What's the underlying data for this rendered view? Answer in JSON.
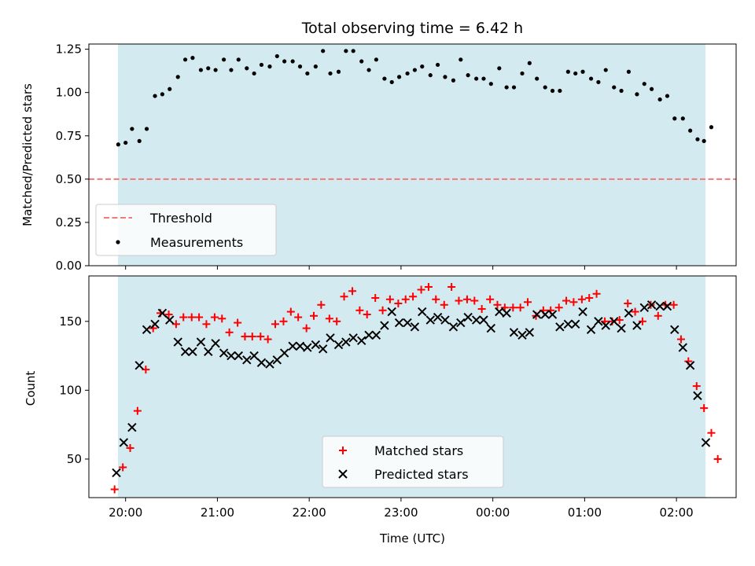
{
  "chart_data": [
    {
      "type": "scatter",
      "title": "Total observing time = 6.42 h",
      "xlabel": "",
      "ylabel": "Matched/Predicted stars",
      "ylim": [
        0,
        1.28
      ],
      "yticks": [
        "0.00",
        "0.25",
        "0.50",
        "0.75",
        "1.00",
        "1.25"
      ],
      "ytick_values": [
        0,
        0.25,
        0.5,
        0.75,
        1.0,
        1.25
      ],
      "xlim": [
        19.6,
        26.65
      ],
      "shaded_span": [
        19.917,
        26.317
      ],
      "shade_color": "#d4eaf1",
      "grid": false,
      "legend_position": "lower-left",
      "legend": [
        "Threshold",
        "Measurements"
      ],
      "threshold": {
        "name": "Threshold",
        "y": 0.5,
        "color": "#f07a7a",
        "style": "dashed"
      },
      "series": [
        {
          "name": "Measurements",
          "color": "#000000",
          "marker": "dot",
          "points": [
            [
              19.92,
              0.7
            ],
            [
              20.0,
              0.71
            ],
            [
              20.07,
              0.79
            ],
            [
              20.15,
              0.72
            ],
            [
              20.23,
              0.79
            ],
            [
              20.32,
              0.98
            ],
            [
              20.4,
              0.99
            ],
            [
              20.48,
              1.02
            ],
            [
              20.57,
              1.09
            ],
            [
              20.65,
              1.19
            ],
            [
              20.73,
              1.2
            ],
            [
              20.82,
              1.13
            ],
            [
              20.9,
              1.14
            ],
            [
              20.98,
              1.13
            ],
            [
              21.07,
              1.19
            ],
            [
              21.15,
              1.13
            ],
            [
              21.23,
              1.19
            ],
            [
              21.32,
              1.14
            ],
            [
              21.4,
              1.11
            ],
            [
              21.48,
              1.16
            ],
            [
              21.57,
              1.15
            ],
            [
              21.65,
              1.21
            ],
            [
              21.73,
              1.18
            ],
            [
              21.82,
              1.18
            ],
            [
              21.9,
              1.15
            ],
            [
              21.98,
              1.11
            ],
            [
              22.07,
              1.15
            ],
            [
              22.15,
              1.24
            ],
            [
              22.23,
              1.11
            ],
            [
              22.32,
              1.12
            ],
            [
              22.4,
              1.24
            ],
            [
              22.48,
              1.24
            ],
            [
              22.57,
              1.18
            ],
            [
              22.65,
              1.13
            ],
            [
              22.73,
              1.19
            ],
            [
              22.82,
              1.08
            ],
            [
              22.9,
              1.06
            ],
            [
              22.98,
              1.09
            ],
            [
              23.07,
              1.11
            ],
            [
              23.15,
              1.13
            ],
            [
              23.23,
              1.15
            ],
            [
              23.32,
              1.1
            ],
            [
              23.4,
              1.16
            ],
            [
              23.48,
              1.09
            ],
            [
              23.57,
              1.07
            ],
            [
              23.65,
              1.19
            ],
            [
              23.73,
              1.1
            ],
            [
              23.82,
              1.08
            ],
            [
              23.9,
              1.08
            ],
            [
              23.98,
              1.05
            ],
            [
              24.07,
              1.14
            ],
            [
              24.15,
              1.03
            ],
            [
              24.23,
              1.03
            ],
            [
              24.32,
              1.11
            ],
            [
              24.4,
              1.17
            ],
            [
              24.48,
              1.08
            ],
            [
              24.57,
              1.03
            ],
            [
              24.65,
              1.01
            ],
            [
              24.73,
              1.01
            ],
            [
              24.82,
              1.12
            ],
            [
              24.9,
              1.11
            ],
            [
              24.98,
              1.12
            ],
            [
              25.07,
              1.08
            ],
            [
              25.15,
              1.06
            ],
            [
              25.23,
              1.13
            ],
            [
              25.32,
              1.03
            ],
            [
              25.4,
              1.01
            ],
            [
              25.48,
              1.12
            ],
            [
              25.57,
              0.99
            ],
            [
              25.65,
              1.05
            ],
            [
              25.73,
              1.02
            ],
            [
              25.82,
              0.96
            ],
            [
              25.9,
              0.98
            ],
            [
              25.98,
              0.85
            ],
            [
              26.07,
              0.85
            ],
            [
              26.15,
              0.78
            ],
            [
              26.23,
              0.73
            ],
            [
              26.3,
              0.72
            ],
            [
              26.38,
              0.8
            ]
          ]
        }
      ]
    },
    {
      "type": "scatter",
      "title": "",
      "xlabel": "Time (UTC)",
      "ylabel": "Count",
      "ylim": [
        22,
        183
      ],
      "yticks": [
        "50",
        "100",
        "150"
      ],
      "ytick_values": [
        50,
        100,
        150
      ],
      "xlim": [
        19.6,
        26.65
      ],
      "xtick_values": [
        20,
        21,
        22,
        23,
        24,
        25,
        26
      ],
      "xticks": [
        "20:00",
        "21:00",
        "22:00",
        "23:00",
        "00:00",
        "01:00",
        "02:00"
      ],
      "shaded_span": [
        19.917,
        26.317
      ],
      "shade_color": "#d4eaf1",
      "grid": false,
      "legend_position": "lower-center",
      "legend": [
        "Matched stars",
        "Predicted stars"
      ],
      "series": [
        {
          "name": "Matched stars",
          "color": "#ff0000",
          "marker": "plus",
          "points": [
            [
              19.88,
              28
            ],
            [
              19.97,
              44
            ],
            [
              20.05,
              58
            ],
            [
              20.13,
              85
            ],
            [
              20.22,
              115
            ],
            [
              20.3,
              145
            ],
            [
              20.38,
              156
            ],
            [
              20.47,
              155
            ],
            [
              20.55,
              148
            ],
            [
              20.63,
              153
            ],
            [
              20.72,
              153
            ],
            [
              20.8,
              153
            ],
            [
              20.88,
              148
            ],
            [
              20.97,
              153
            ],
            [
              21.05,
              152
            ],
            [
              21.13,
              142
            ],
            [
              21.22,
              149
            ],
            [
              21.3,
              139
            ],
            [
              21.38,
              139
            ],
            [
              21.47,
              139
            ],
            [
              21.55,
              137
            ],
            [
              21.63,
              148
            ],
            [
              21.72,
              150
            ],
            [
              21.8,
              157
            ],
            [
              21.88,
              153
            ],
            [
              21.97,
              145
            ],
            [
              22.05,
              154
            ],
            [
              22.13,
              162
            ],
            [
              22.22,
              152
            ],
            [
              22.3,
              150
            ],
            [
              22.38,
              168
            ],
            [
              22.47,
              172
            ],
            [
              22.55,
              158
            ],
            [
              22.63,
              155
            ],
            [
              22.72,
              167
            ],
            [
              22.8,
              158
            ],
            [
              22.88,
              166
            ],
            [
              22.97,
              163
            ],
            [
              23.05,
              166
            ],
            [
              23.13,
              168
            ],
            [
              23.22,
              173
            ],
            [
              23.3,
              175
            ],
            [
              23.38,
              166
            ],
            [
              23.47,
              162
            ],
            [
              23.55,
              175
            ],
            [
              23.63,
              165
            ],
            [
              23.72,
              166
            ],
            [
              23.8,
              165
            ],
            [
              23.88,
              159
            ],
            [
              23.97,
              166
            ],
            [
              24.05,
              162
            ],
            [
              24.13,
              160
            ],
            [
              24.22,
              160
            ],
            [
              24.3,
              160
            ],
            [
              24.38,
              164
            ],
            [
              24.47,
              154
            ],
            [
              24.55,
              158
            ],
            [
              24.63,
              158
            ],
            [
              24.72,
              160
            ],
            [
              24.8,
              165
            ],
            [
              24.88,
              164
            ],
            [
              24.97,
              166
            ],
            [
              25.05,
              167
            ],
            [
              25.13,
              170
            ],
            [
              25.22,
              150
            ],
            [
              25.3,
              150
            ],
            [
              25.38,
              151
            ],
            [
              25.47,
              163
            ],
            [
              25.55,
              157
            ],
            [
              25.63,
              150
            ],
            [
              25.72,
              162
            ],
            [
              25.8,
              154
            ],
            [
              25.88,
              162
            ],
            [
              25.97,
              162
            ],
            [
              26.05,
              137
            ],
            [
              26.13,
              121
            ],
            [
              26.22,
              103
            ],
            [
              26.3,
              87
            ],
            [
              26.38,
              69
            ],
            [
              26.45,
              50
            ]
          ]
        },
        {
          "name": "Predicted stars",
          "color": "#000000",
          "marker": "x",
          "points": [
            [
              19.9,
              40
            ],
            [
              19.98,
              62
            ],
            [
              20.07,
              73
            ],
            [
              20.15,
              118
            ],
            [
              20.23,
              144
            ],
            [
              20.32,
              148
            ],
            [
              20.4,
              156
            ],
            [
              20.48,
              151
            ],
            [
              20.57,
              135
            ],
            [
              20.65,
              128
            ],
            [
              20.73,
              128
            ],
            [
              20.82,
              135
            ],
            [
              20.9,
              128
            ],
            [
              20.98,
              134
            ],
            [
              21.07,
              127
            ],
            [
              21.15,
              125
            ],
            [
              21.23,
              125
            ],
            [
              21.32,
              122
            ],
            [
              21.4,
              125
            ],
            [
              21.48,
              120
            ],
            [
              21.57,
              119
            ],
            [
              21.65,
              122
            ],
            [
              21.73,
              127
            ],
            [
              21.82,
              132
            ],
            [
              21.9,
              132
            ],
            [
              21.98,
              131
            ],
            [
              22.07,
              133
            ],
            [
              22.15,
              130
            ],
            [
              22.23,
              138
            ],
            [
              22.32,
              133
            ],
            [
              22.4,
              135
            ],
            [
              22.48,
              138
            ],
            [
              22.57,
              136
            ],
            [
              22.65,
              140
            ],
            [
              22.73,
              140
            ],
            [
              22.82,
              147
            ],
            [
              22.9,
              157
            ],
            [
              22.98,
              149
            ],
            [
              23.07,
              149
            ],
            [
              23.15,
              146
            ],
            [
              23.23,
              157
            ],
            [
              23.32,
              151
            ],
            [
              23.4,
              153
            ],
            [
              23.48,
              151
            ],
            [
              23.57,
              146
            ],
            [
              23.65,
              149
            ],
            [
              23.73,
              153
            ],
            [
              23.82,
              151
            ],
            [
              23.9,
              151
            ],
            [
              23.98,
              145
            ],
            [
              24.07,
              157
            ],
            [
              24.15,
              156
            ],
            [
              24.23,
              142
            ],
            [
              24.32,
              140
            ],
            [
              24.4,
              142
            ],
            [
              24.48,
              155
            ],
            [
              24.57,
              155
            ],
            [
              24.65,
              155
            ],
            [
              24.73,
              146
            ],
            [
              24.82,
              148
            ],
            [
              24.9,
              148
            ],
            [
              24.98,
              157
            ],
            [
              25.07,
              144
            ],
            [
              25.15,
              150
            ],
            [
              25.23,
              147
            ],
            [
              25.32,
              150
            ],
            [
              25.4,
              145
            ],
            [
              25.48,
              156
            ],
            [
              25.57,
              147
            ],
            [
              25.65,
              160
            ],
            [
              25.73,
              162
            ],
            [
              25.82,
              161
            ],
            [
              25.9,
              161
            ],
            [
              25.98,
              144
            ],
            [
              26.07,
              131
            ],
            [
              26.15,
              118
            ],
            [
              26.23,
              96
            ],
            [
              26.32,
              62
            ]
          ]
        }
      ]
    }
  ]
}
